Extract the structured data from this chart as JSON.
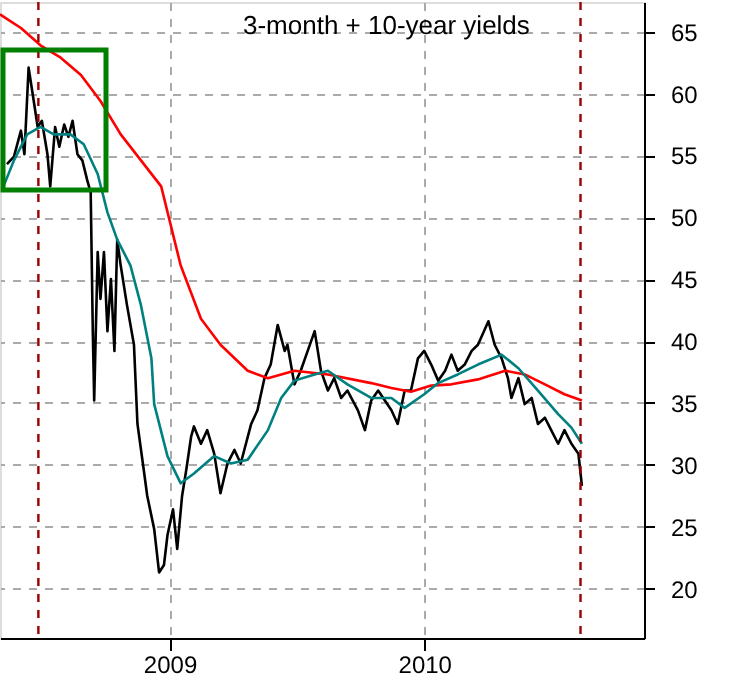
{
  "chart_data": {
    "type": "line",
    "title": "3-month + 10-year yields",
    "xlim": [
      "2008-05-03",
      "2010-11-12"
    ],
    "xticks": [
      "2009",
      "2010"
    ],
    "ylim": [
      16,
      67.4
    ],
    "yticks": [
      20,
      25,
      30,
      35,
      40,
      45,
      50,
      55,
      60,
      65
    ],
    "grid": true,
    "legend": false,
    "marker": "none",
    "line_style": "solid",
    "ref_lines": [
      {
        "axis": "x",
        "value": "2008-06-27",
        "color": "#990000",
        "line_style": "dashed"
      },
      {
        "axis": "x",
        "value": "2010-08-13",
        "color": "#990000",
        "line_style": "dashed"
      }
    ],
    "series": [
      {
        "color": "#000000",
        "x": [
          "2008-05-13",
          "2008-05-23",
          "2008-06-02",
          "2008-06-07",
          "2008-06-13",
          "2008-06-19",
          "2008-06-26",
          "2008-07-02",
          "2008-07-10",
          "2008-07-14",
          "2008-07-21",
          "2008-07-27",
          "2008-08-03",
          "2008-08-09",
          "2008-08-15",
          "2008-08-22",
          "2008-08-29",
          "2008-09-05",
          "2008-09-10",
          "2008-09-13",
          "2008-09-15",
          "2008-09-20",
          "2008-09-24",
          "2008-09-29",
          "2008-10-04",
          "2008-10-09",
          "2008-10-14",
          "2008-10-18",
          "2008-10-23",
          "2008-11-01",
          "2008-11-11",
          "2008-11-16",
          "2008-11-25",
          "2008-11-30",
          "2008-12-10",
          "2008-12-17",
          "2008-12-24",
          "2008-12-29",
          "2009-01-06",
          "2009-01-12",
          "2009-01-19",
          "2009-01-25",
          "2009-02-01",
          "2009-02-05",
          "2009-02-15",
          "2009-02-24",
          "2009-03-06",
          "2009-03-15",
          "2009-03-25",
          "2009-04-04",
          "2009-04-13",
          "2009-04-28",
          "2009-05-07",
          "2009-05-17",
          "2009-05-26",
          "2009-06-05",
          "2009-06-15",
          "2009-06-19",
          "2009-06-29",
          "2009-07-08",
          "2009-07-18",
          "2009-07-28",
          "2009-08-06",
          "2009-08-16",
          "2009-08-25",
          "2009-09-04",
          "2009-09-13",
          "2009-09-28",
          "2009-10-08",
          "2009-10-17",
          "2009-10-27",
          "2009-11-15",
          "2009-11-24",
          "2009-12-04",
          "2009-12-13",
          "2009-12-23",
          "2010-01-01",
          "2010-01-11",
          "2010-01-21",
          "2010-01-31",
          "2010-02-09",
          "2010-02-18",
          "2010-02-28",
          "2010-03-10",
          "2010-03-19",
          "2010-04-03",
          "2010-04-12",
          "2010-04-22",
          "2010-05-01",
          "2010-05-06",
          "2010-05-16",
          "2010-05-25",
          "2010-06-04",
          "2010-06-13",
          "2010-06-23",
          "2010-07-02",
          "2010-07-12",
          "2010-07-21",
          "2010-07-31",
          "2010-08-10",
          "2010-08-15"
        ],
        "values": [
          54.3,
          54.9,
          57.0,
          55.1,
          62.1,
          59.9,
          57.3,
          57.8,
          55.1,
          52.5,
          57.3,
          55.7,
          57.5,
          56.5,
          57.8,
          55.1,
          54.6,
          53.0,
          52.0,
          40.8,
          35.2,
          47.2,
          43.4,
          47.2,
          40.8,
          45.0,
          39.2,
          48.2,
          46.1,
          42.9,
          39.7,
          33.3,
          29.6,
          27.5,
          24.8,
          21.3,
          21.9,
          24.3,
          26.4,
          23.2,
          27.5,
          29.6,
          32.3,
          33.1,
          31.7,
          32.8,
          30.9,
          27.7,
          30.1,
          31.2,
          30.1,
          33.3,
          34.4,
          37.0,
          38.1,
          41.3,
          39.2,
          39.7,
          36.5,
          37.6,
          39.2,
          40.8,
          37.6,
          36.0,
          37.0,
          35.4,
          36.0,
          34.4,
          32.8,
          35.2,
          36.0,
          34.4,
          33.3,
          36.0,
          36.0,
          38.6,
          39.2,
          38.1,
          36.8,
          37.6,
          38.9,
          37.6,
          38.1,
          39.2,
          39.7,
          41.6,
          39.7,
          38.6,
          37.0,
          35.4,
          37.0,
          34.9,
          35.4,
          33.3,
          33.8,
          32.8,
          31.7,
          32.8,
          31.7,
          30.9,
          28.3
        ]
      },
      {
        "color": "#ff0000",
        "x": [
          "2008-05-03",
          "2008-06-02",
          "2008-06-30",
          "2008-07-29",
          "2008-08-27",
          "2008-09-24",
          "2008-10-23",
          "2008-11-21",
          "2008-12-20",
          "2009-01-17",
          "2009-02-15",
          "2009-03-15",
          "2009-04-23",
          "2009-05-22",
          "2009-06-29",
          "2009-08-16",
          "2009-10-17",
          "2009-11-15",
          "2009-12-13",
          "2010-01-11",
          "2010-02-09",
          "2010-03-19",
          "2010-04-27",
          "2010-05-25",
          "2010-06-23",
          "2010-07-21",
          "2010-08-15"
        ],
        "values": [
          66.4,
          65.3,
          63.9,
          62.9,
          61.5,
          59.4,
          56.7,
          54.6,
          52.5,
          46.1,
          41.8,
          39.7,
          37.6,
          37.0,
          37.6,
          37.3,
          36.6,
          36.2,
          35.9,
          36.4,
          36.5,
          36.9,
          37.6,
          37.3,
          36.5,
          35.7,
          35.2
        ]
      },
      {
        "color": "#008080",
        "x": [
          "2008-05-08",
          "2008-05-23",
          "2008-06-11",
          "2008-06-30",
          "2008-07-19",
          "2008-08-12",
          "2008-08-31",
          "2008-09-20",
          "2008-10-04",
          "2008-10-18",
          "2008-11-06",
          "2008-11-21",
          "2008-12-06",
          "2008-12-10",
          "2008-12-29",
          "2009-01-17",
          "2009-02-05",
          "2009-03-06",
          "2009-03-30",
          "2009-04-23",
          "2009-05-22",
          "2009-06-10",
          "2009-06-29",
          "2009-07-28",
          "2009-08-16",
          "2009-09-13",
          "2009-10-17",
          "2009-11-15",
          "2009-12-04",
          "2010-01-01",
          "2010-01-21",
          "2010-02-18",
          "2010-03-19",
          "2010-04-22",
          "2010-05-16",
          "2010-06-13",
          "2010-07-12",
          "2010-07-31",
          "2010-08-15"
        ],
        "values": [
          52.5,
          54.6,
          56.7,
          57.3,
          56.7,
          56.7,
          55.9,
          53.5,
          50.4,
          48.2,
          46.1,
          42.9,
          38.6,
          34.9,
          30.7,
          28.5,
          29.3,
          30.7,
          30.1,
          30.4,
          32.8,
          35.4,
          36.8,
          37.3,
          37.6,
          36.5,
          35.4,
          35.4,
          34.6,
          35.7,
          36.6,
          37.3,
          38.1,
          38.9,
          37.8,
          36.0,
          34.1,
          33.0,
          31.7
        ]
      }
    ]
  }
}
